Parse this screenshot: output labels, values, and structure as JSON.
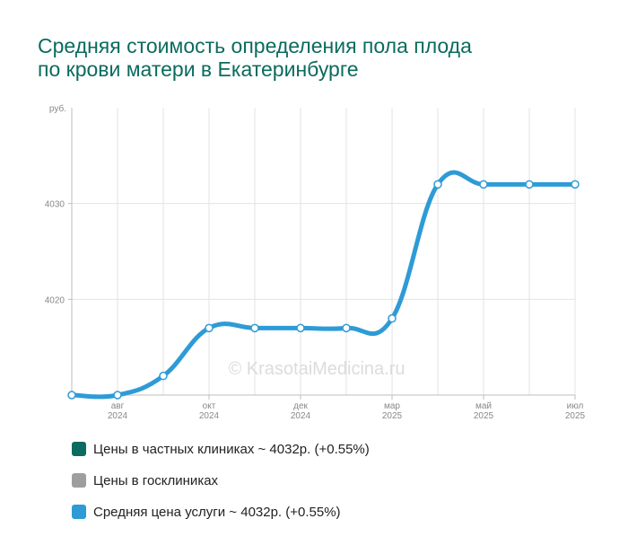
{
  "title_line1": "Средняя стоимость определения пола плода",
  "title_line2": "по крови матери в Екатеринбурге",
  "watermark": "© KrasotaiMedicina.ru",
  "chart_data": {
    "type": "line",
    "y_unit": "руб.",
    "y_ticks": [
      4020,
      4030
    ],
    "ylim": [
      4010,
      4040
    ],
    "x_labels": [
      {
        "index": 1,
        "month": "авг",
        "year": "2024"
      },
      {
        "index": 3,
        "month": "окт",
        "year": "2024"
      },
      {
        "index": 5,
        "month": "дек",
        "year": "2024"
      },
      {
        "index": 7,
        "month": "мар",
        "year": "2025"
      },
      {
        "index": 9,
        "month": "май",
        "year": "2025"
      },
      {
        "index": 11,
        "month": "июл",
        "year": "2025"
      }
    ],
    "grid": true,
    "series": [
      {
        "name": "Средняя цена услуги ~ 4032р. (+0.55%)",
        "color": "#2e9bd6",
        "values": [
          4010,
          4010,
          4012,
          4017,
          4017,
          4017,
          4017,
          4018,
          4032,
          4032,
          4032,
          4032
        ]
      }
    ]
  },
  "legend": [
    {
      "label": "Цены в частных клиниках ~ 4032р. (+0.55%)",
      "color": "#0b6b5e"
    },
    {
      "label": "Цены в госклиниках",
      "color": "#9e9e9e"
    },
    {
      "label": "Средняя цена услуги ~ 4032р. (+0.55%)",
      "color": "#2e9bd6"
    }
  ]
}
